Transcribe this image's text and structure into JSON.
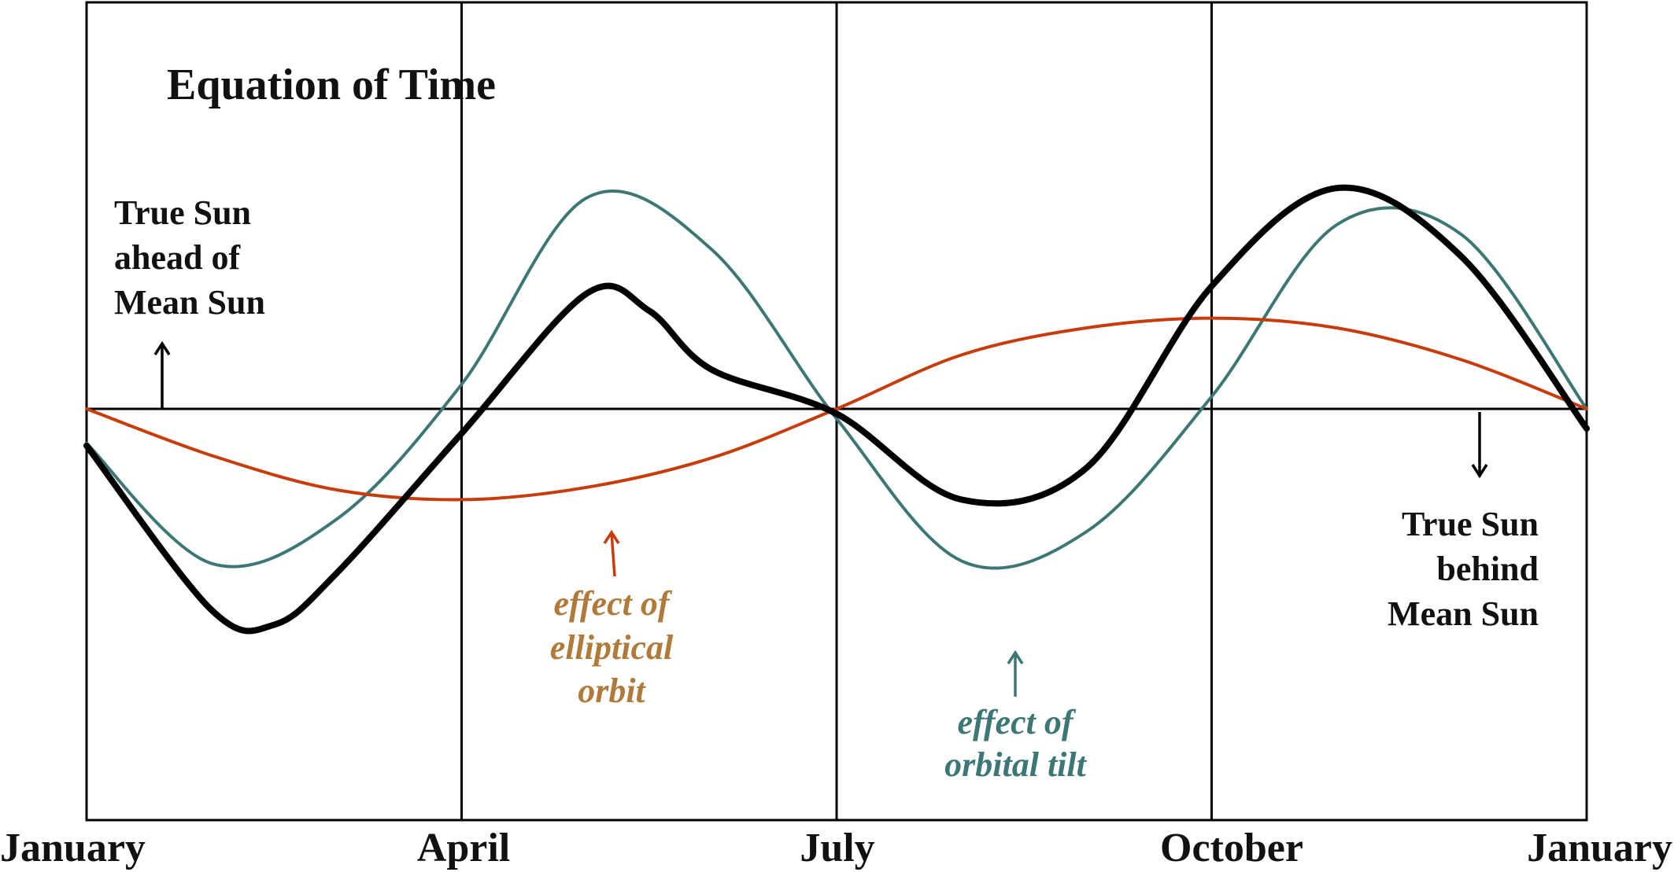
{
  "chart_data": {
    "type": "line",
    "title": "Equation of Time",
    "xlabel": "",
    "ylabel": "",
    "x_ticks": [
      "January",
      "April",
      "July",
      "October",
      "January"
    ],
    "xlim": [
      0,
      12
    ],
    "ylim": [
      -1,
      1
    ],
    "grid": "vertical lines at quarter boundaries",
    "annotations": {
      "ahead": [
        "True Sun",
        "ahead of",
        "Mean Sun"
      ],
      "behind": [
        "True Sun",
        "behind",
        "Mean Sun"
      ],
      "elliptical": [
        "effect of",
        "elliptical",
        "orbit"
      ],
      "tilt": [
        "effect of",
        "orbital tilt"
      ]
    },
    "series": [
      {
        "key": "tilt",
        "color": "#3d7775",
        "x": [
          0,
          1,
          2,
          3,
          4,
          5,
          6,
          7,
          8,
          9,
          10,
          11,
          12
        ],
        "y": [
          -0.14,
          -0.63,
          -0.45,
          0.1,
          0.86,
          0.65,
          -0.04,
          -0.62,
          -0.5,
          0.05,
          0.75,
          0.71,
          0.0
        ]
      },
      {
        "key": "elliptical",
        "color": "#c83c0c",
        "x": [
          0,
          1,
          2,
          3,
          4,
          5,
          6,
          7,
          8,
          9,
          10,
          11,
          12
        ],
        "y": [
          0.0,
          -0.19,
          -0.33,
          -0.37,
          -0.32,
          -0.2,
          0.0,
          0.22,
          0.33,
          0.37,
          0.33,
          0.2,
          0.0
        ]
      },
      {
        "key": "total",
        "color": "#000000",
        "x": [
          0,
          1,
          1.5,
          2,
          3,
          4,
          4.5,
          5,
          6,
          7,
          8,
          9,
          10,
          11,
          12
        ],
        "y": [
          -0.15,
          -0.82,
          -0.88,
          -0.67,
          -0.1,
          0.47,
          0.4,
          0.16,
          -0.02,
          -0.37,
          -0.24,
          0.5,
          0.9,
          0.62,
          -0.08
        ]
      }
    ]
  },
  "colors": {
    "axis": "#000000",
    "elliptical_text": "#b07a3a",
    "tilt_text": "#3d7775",
    "elliptical_arrow": "#c83c0c",
    "tilt_arrow": "#3d7775"
  }
}
